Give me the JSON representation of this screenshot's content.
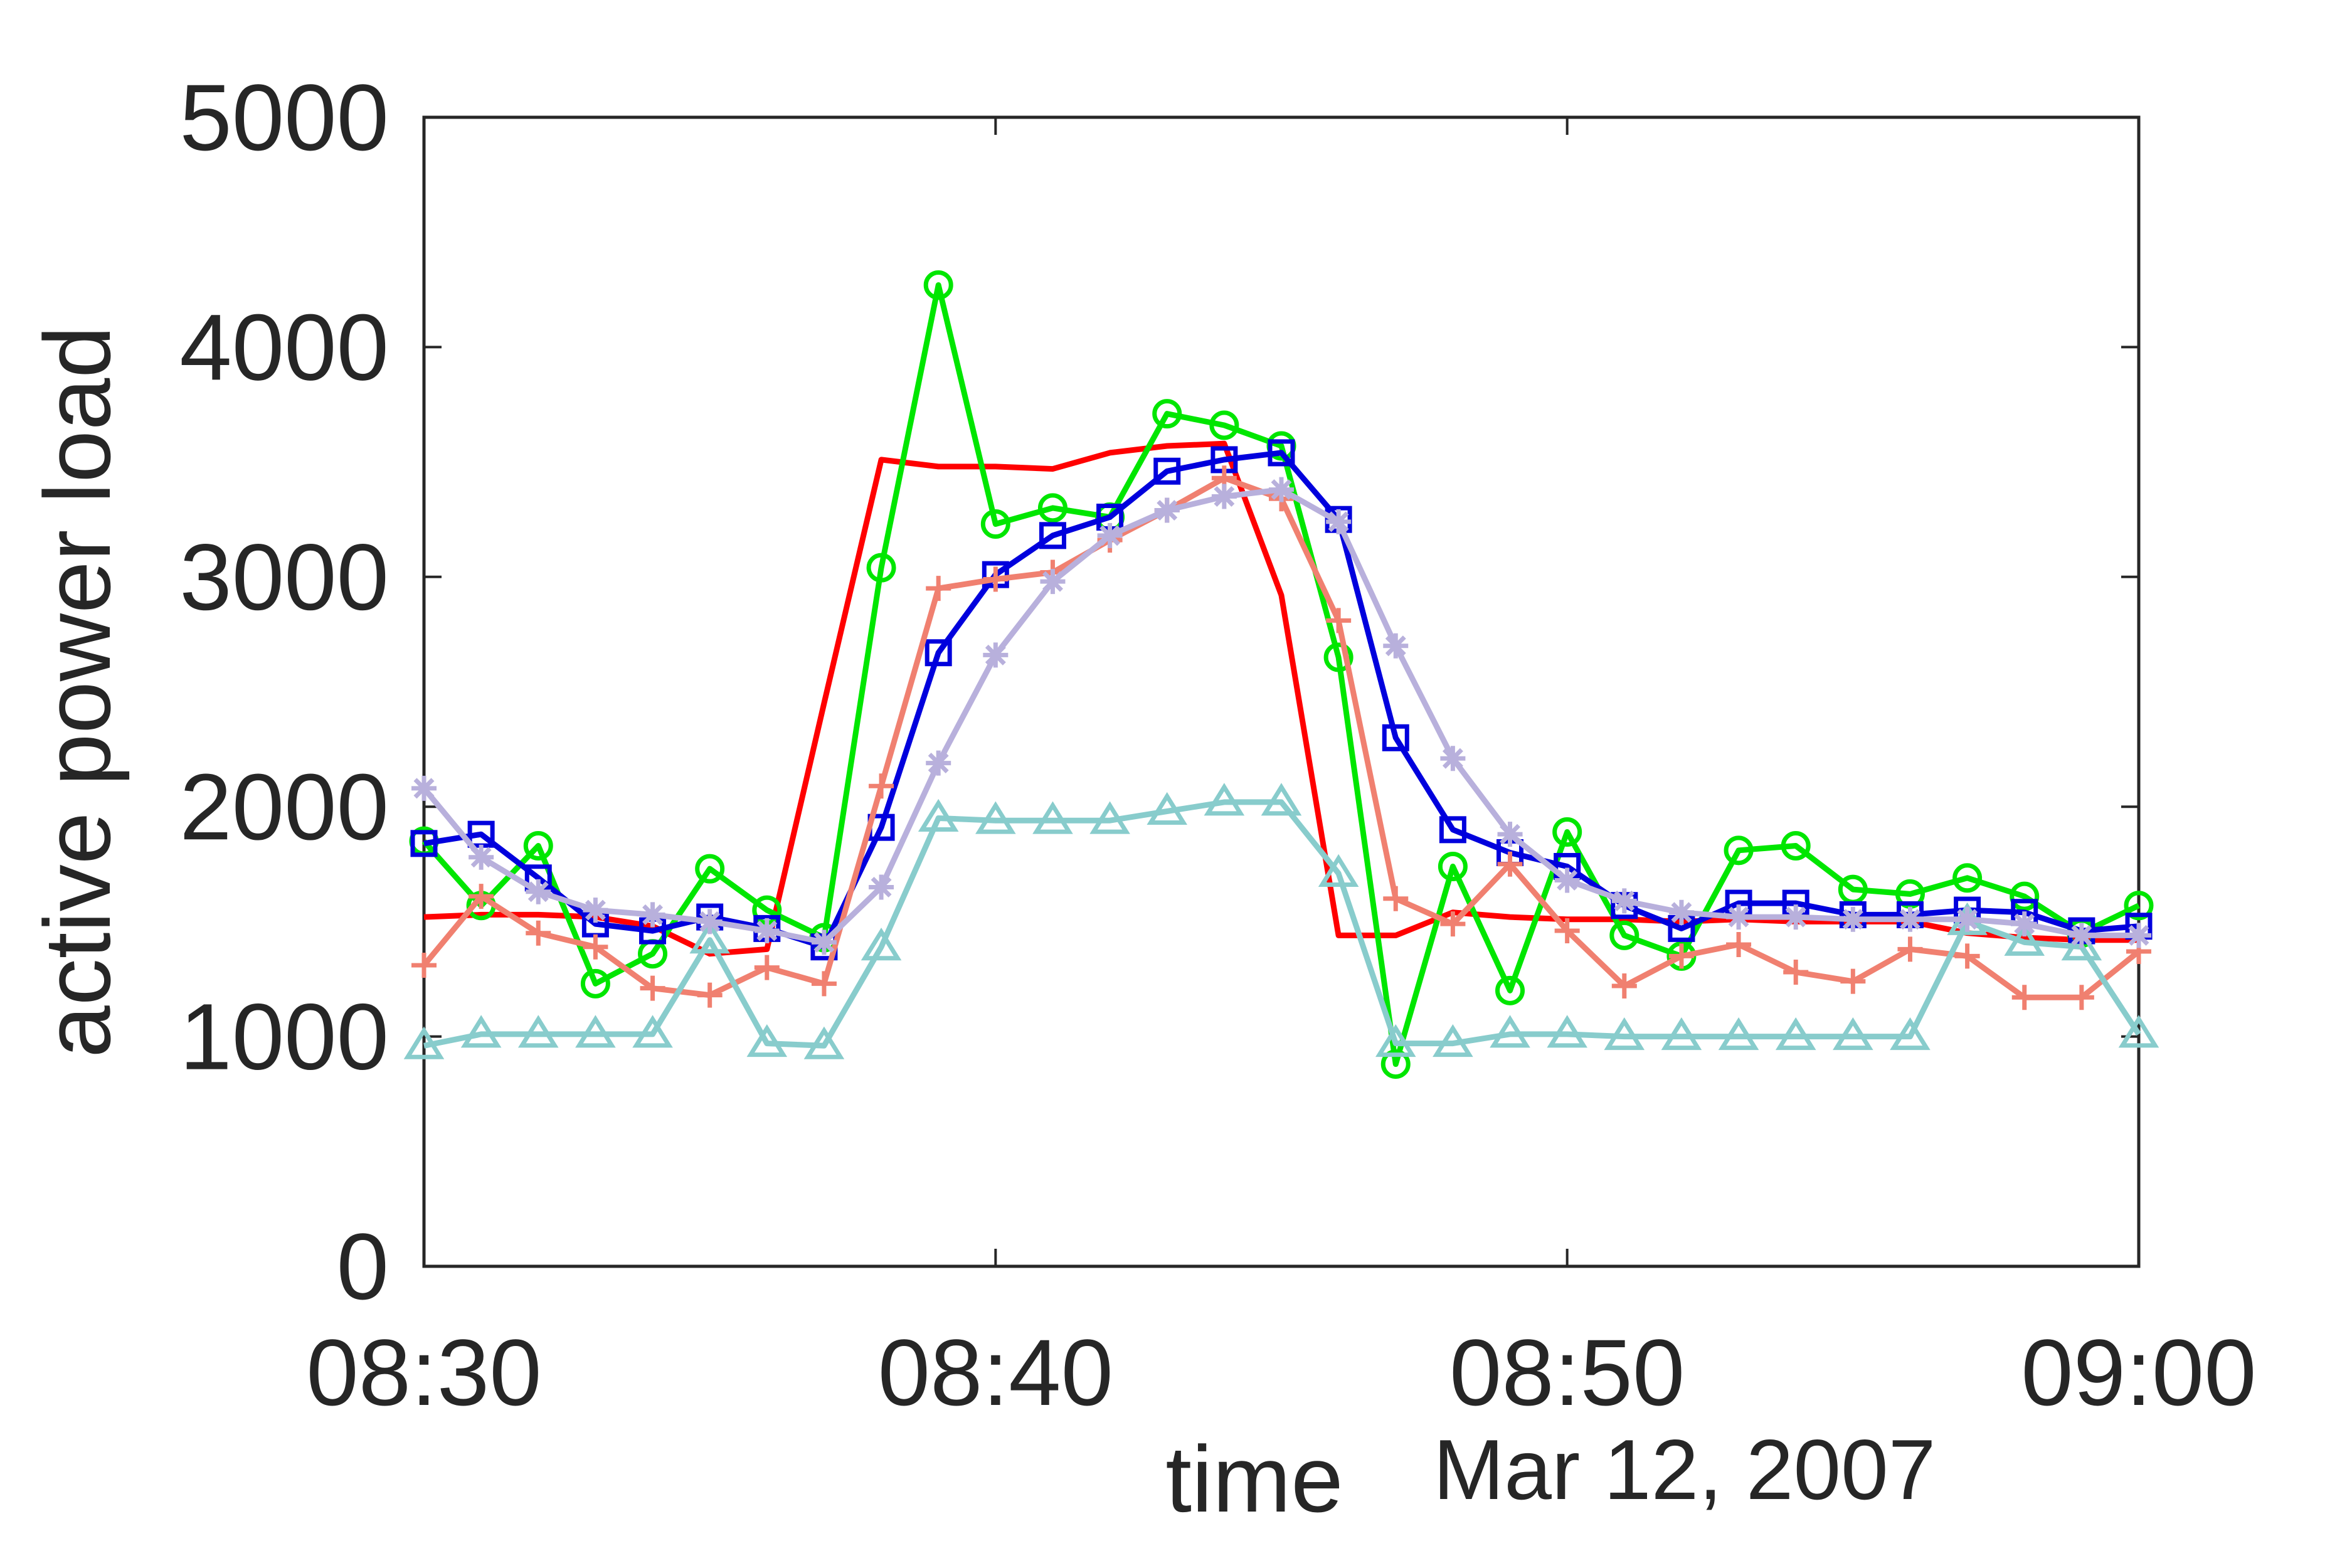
{
  "chart_data": {
    "type": "line",
    "title": "",
    "xlabel": "time",
    "ylabel": "active power load",
    "date_label": "Mar 12, 2007",
    "x_ticks": [
      "08:30",
      "08:40",
      "08:50",
      "09:00"
    ],
    "y_ticks": [
      "0",
      "1000",
      "2000",
      "3000",
      "4000",
      "5000"
    ],
    "xlim": [
      "08:30",
      "09:00"
    ],
    "ylim": [
      0,
      5000
    ],
    "grid": false,
    "x": [
      "08:30",
      "08:31",
      "08:32",
      "08:33",
      "08:34",
      "08:35",
      "08:36",
      "08:37",
      "08:38",
      "08:39",
      "08:40",
      "08:41",
      "08:42",
      "08:43",
      "08:44",
      "08:45",
      "08:46",
      "08:47",
      "08:48",
      "08:49",
      "08:50",
      "08:51",
      "08:52",
      "08:53",
      "08:54",
      "08:55",
      "08:56",
      "08:57",
      "08:58",
      "08:59",
      "09:00"
    ],
    "series": [
      {
        "color": "#ff0000",
        "marker": "none",
        "values": [
          1520,
          1530,
          1530,
          1520,
          1480,
          1360,
          1380,
          2450,
          3510,
          3480,
          3480,
          3470,
          3540,
          3570,
          3580,
          2920,
          1440,
          1440,
          1540,
          1520,
          1510,
          1510,
          1500,
          1510,
          1500,
          1500,
          1500,
          1450,
          1430,
          1420,
          1420
        ]
      },
      {
        "color": "#00e600",
        "marker": "circle",
        "values": [
          1850,
          1570,
          1830,
          1230,
          1360,
          1730,
          1550,
          1430,
          3040,
          4270,
          3230,
          3300,
          3260,
          3710,
          3660,
          3570,
          2650,
          880,
          1740,
          1200,
          1890,
          1440,
          1350,
          1810,
          1830,
          1640,
          1620,
          1690,
          1610,
          1450,
          1570
        ]
      },
      {
        "color": "#0000dd",
        "marker": "square",
        "values": [
          1840,
          1880,
          1690,
          1490,
          1460,
          1520,
          1470,
          1390,
          1910,
          2670,
          3010,
          3180,
          3260,
          3460,
          3510,
          3540,
          3250,
          2300,
          1900,
          1800,
          1740,
          1570,
          1470,
          1580,
          1580,
          1530,
          1530,
          1550,
          1540,
          1460,
          1480
        ]
      },
      {
        "color": "#f08070",
        "marker": "plus",
        "values": [
          1310,
          1610,
          1450,
          1390,
          1210,
          1180,
          1300,
          1230,
          2090,
          2950,
          2990,
          3020,
          3160,
          3290,
          3430,
          3340,
          2810,
          1600,
          1490,
          1750,
          1460,
          1220,
          1350,
          1400,
          1280,
          1240,
          1380,
          1350,
          1170,
          1170,
          1370
        ]
      },
      {
        "color": "#88cccc",
        "marker": "triangle",
        "values": [
          960,
          1010,
          1010,
          1010,
          1010,
          1420,
          970,
          960,
          1390,
          1950,
          1940,
          1940,
          1940,
          1980,
          2020,
          2020,
          1710,
          970,
          970,
          1010,
          1010,
          1000,
          1000,
          1000,
          1000,
          1000,
          1000,
          1500,
          1410,
          1390,
          1010
        ]
      },
      {
        "color": "#b8b0dc",
        "marker": "asterisk",
        "values": [
          2080,
          1780,
          1630,
          1550,
          1530,
          1500,
          1460,
          1410,
          1650,
          2190,
          2660,
          2980,
          3180,
          3290,
          3350,
          3380,
          3240,
          2700,
          2210,
          1880,
          1680,
          1590,
          1540,
          1520,
          1520,
          1510,
          1510,
          1510,
          1490,
          1440,
          1440
        ]
      }
    ]
  }
}
